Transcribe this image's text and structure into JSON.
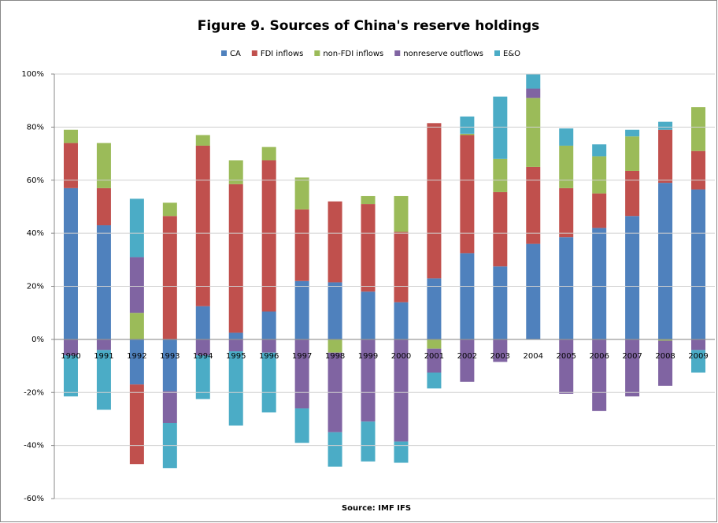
{
  "chart_data": {
    "type": "stacked_bar",
    "title": "Figure 9. Sources of China's reserve holdings",
    "source": "Source: IMF IFS",
    "categories": [
      "1990",
      "1991",
      "1992",
      "1993",
      "1994",
      "1995",
      "1996",
      "1997",
      "1998",
      "1999",
      "2000",
      "2001",
      "2002",
      "2003",
      "2004",
      "2005",
      "2006",
      "2007",
      "2008",
      "2009"
    ],
    "series": [
      {
        "name": "CA",
        "color": "#4f81bd",
        "values": [
          57,
          43,
          -17,
          -19.5,
          12.5,
          2.5,
          10.5,
          22,
          21.5,
          18,
          14,
          23,
          32.5,
          27.5,
          36,
          38.5,
          42,
          46.5,
          59,
          56.5
        ]
      },
      {
        "name": "FDI inflows",
        "color": "#c0504d",
        "values": [
          17,
          14,
          -30,
          46.5,
          60.5,
          56,
          57,
          27,
          30.5,
          33,
          26.5,
          58.5,
          44.5,
          28,
          29,
          18.5,
          13,
          17,
          20,
          14.5
        ]
      },
      {
        "name": "non-FDI inflows",
        "color": "#9bbb59",
        "values": [
          5,
          17,
          10,
          5,
          4,
          9,
          5,
          12,
          -5,
          3,
          13.5,
          -3.5,
          0.5,
          12.5,
          26,
          16,
          14,
          13,
          -0.5,
          16.5
        ]
      },
      {
        "name": "nonreserve outflows",
        "color": "#8064a2",
        "values": [
          -6,
          -4,
          21,
          -12,
          -6,
          -4.5,
          -5,
          -26,
          -30,
          -31,
          -38.5,
          -9,
          -16,
          -8.5,
          3.5,
          -20.5,
          -27,
          -21.5,
          -17,
          -4
        ]
      },
      {
        "name": "E&O",
        "color": "#4bacc6",
        "values": [
          -15.5,
          -22.5,
          22,
          -17,
          -16.5,
          -28,
          -22.5,
          -13,
          -13,
          -15,
          -8,
          -6,
          6.5,
          23.5,
          5.5,
          6.5,
          4.5,
          2.5,
          3,
          -8.5
        ]
      }
    ],
    "ylim": [
      -60,
      100
    ],
    "yticks": [
      {
        "value": -60,
        "label": "-60%"
      },
      {
        "value": -40,
        "label": "-40%"
      },
      {
        "value": -20,
        "label": "-20%"
      },
      {
        "value": 0,
        "label": "0%"
      },
      {
        "value": 20,
        "label": "20%"
      },
      {
        "value": 40,
        "label": "40%"
      },
      {
        "value": 60,
        "label": "60%"
      },
      {
        "value": 80,
        "label": "80%"
      },
      {
        "value": 100,
        "label": "100%"
      }
    ],
    "grid": true,
    "legend": "top"
  }
}
